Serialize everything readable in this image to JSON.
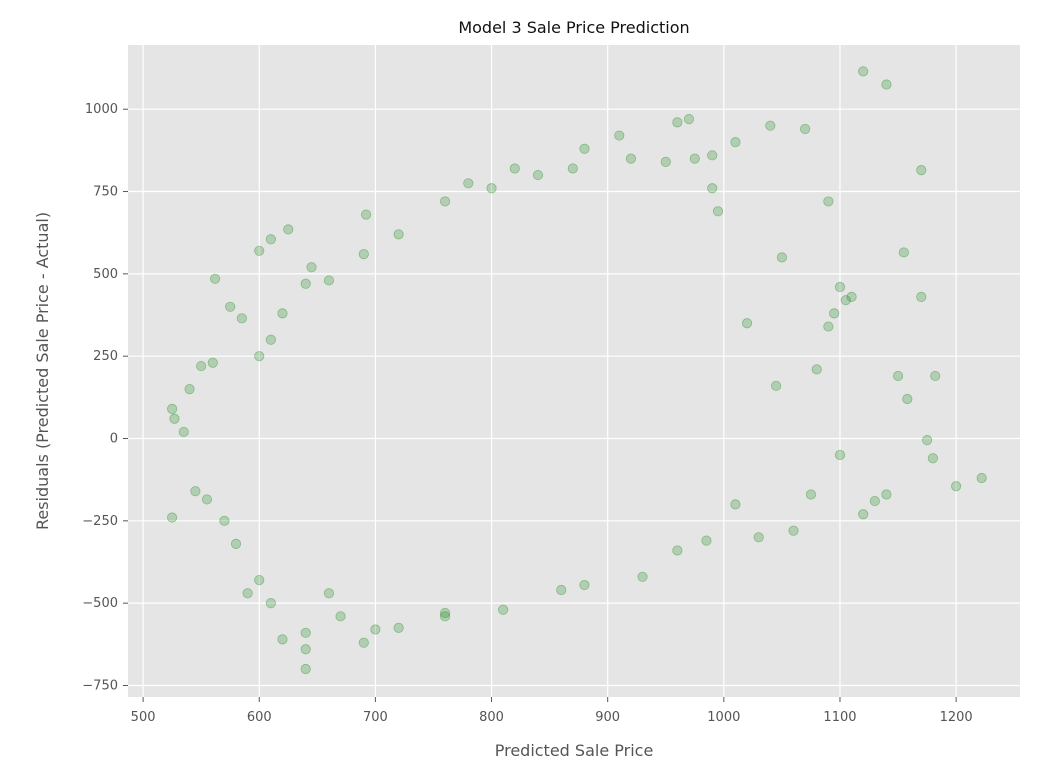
{
  "chart_data": {
    "type": "scatter",
    "title": "Model 3 Sale Price Prediction",
    "xlabel": "Predicted Sale Price",
    "ylabel": "Residuals (Predicted Sale Price - Actual)",
    "xlim": [
      487,
      1255
    ],
    "ylim": [
      -785,
      1195
    ],
    "xticks": [
      500,
      600,
      700,
      800,
      900,
      1000,
      1100,
      1200
    ],
    "yticks": [
      -750,
      -500,
      -250,
      0,
      250,
      500,
      750,
      1000
    ],
    "xtick_labels": [
      "500",
      "600",
      "700",
      "800",
      "900",
      "1000",
      "1100",
      "1200"
    ],
    "ytick_labels": [
      "−750",
      "−500",
      "−250",
      "0",
      "250",
      "500",
      "750",
      "1000"
    ],
    "grid": true,
    "background_color": "#e5e5e5",
    "grid_color": "#ffffff",
    "point_color": "#008000",
    "point_alpha": 0.22,
    "series": [
      {
        "values": [
          [
            525,
            -240
          ],
          [
            525,
            90
          ],
          [
            527,
            60
          ],
          [
            555,
            -185
          ],
          [
            562,
            485
          ],
          [
            585,
            365
          ],
          [
            610,
            -500
          ],
          [
            620,
            -610
          ],
          [
            640,
            -640
          ],
          [
            640,
            -700
          ],
          [
            625,
            635
          ],
          [
            610,
            605
          ],
          [
            600,
            570
          ],
          [
            645,
            520
          ],
          [
            560,
            230
          ],
          [
            575,
            400
          ],
          [
            640,
            -590
          ],
          [
            690,
            -620
          ],
          [
            692,
            680
          ],
          [
            720,
            -575
          ],
          [
            780,
            775
          ],
          [
            820,
            820
          ],
          [
            880,
            880
          ],
          [
            910,
            920
          ],
          [
            960,
            960
          ],
          [
            970,
            970
          ],
          [
            990,
            860
          ],
          [
            1010,
            900
          ],
          [
            1040,
            950
          ],
          [
            1070,
            940
          ],
          [
            1090,
            720
          ],
          [
            1100,
            460
          ],
          [
            1110,
            430
          ],
          [
            1120,
            1115
          ],
          [
            1140,
            1075
          ],
          [
            1150,
            190
          ],
          [
            1155,
            565
          ],
          [
            1158,
            120
          ],
          [
            1170,
            815
          ],
          [
            1170,
            430
          ],
          [
            1175,
            -5
          ],
          [
            1180,
            -60
          ],
          [
            1182,
            190
          ],
          [
            1200,
            -145
          ],
          [
            1222,
            -120
          ],
          [
            1140,
            -170
          ],
          [
            1130,
            -190
          ],
          [
            1120,
            -230
          ],
          [
            1100,
            -50
          ],
          [
            1060,
            -280
          ],
          [
            1030,
            -300
          ],
          [
            1050,
            550
          ],
          [
            1080,
            210
          ],
          [
            1090,
            340
          ],
          [
            1075,
            -170
          ],
          [
            1045,
            160
          ],
          [
            1105,
            420
          ],
          [
            1095,
            380
          ],
          [
            1020,
            350
          ],
          [
            1010,
            -200
          ],
          [
            985,
            -310
          ],
          [
            960,
            -340
          ],
          [
            930,
            -420
          ],
          [
            880,
            -445
          ],
          [
            860,
            -460
          ],
          [
            810,
            -520
          ],
          [
            760,
            -530
          ],
          [
            760,
            -540
          ],
          [
            700,
            -580
          ],
          [
            670,
            -540
          ],
          [
            660,
            -470
          ],
          [
            600,
            -430
          ],
          [
            590,
            -470
          ],
          [
            580,
            -320
          ],
          [
            570,
            -250
          ],
          [
            545,
            -160
          ],
          [
            535,
            20
          ],
          [
            540,
            150
          ],
          [
            550,
            220
          ],
          [
            600,
            250
          ],
          [
            610,
            300
          ],
          [
            620,
            380
          ],
          [
            640,
            470
          ],
          [
            660,
            480
          ],
          [
            690,
            560
          ],
          [
            720,
            620
          ],
          [
            760,
            720
          ],
          [
            800,
            760
          ],
          [
            840,
            800
          ],
          [
            870,
            820
          ],
          [
            920,
            850
          ],
          [
            950,
            840
          ],
          [
            975,
            850
          ],
          [
            990,
            760
          ],
          [
            995,
            690
          ]
        ]
      }
    ]
  }
}
